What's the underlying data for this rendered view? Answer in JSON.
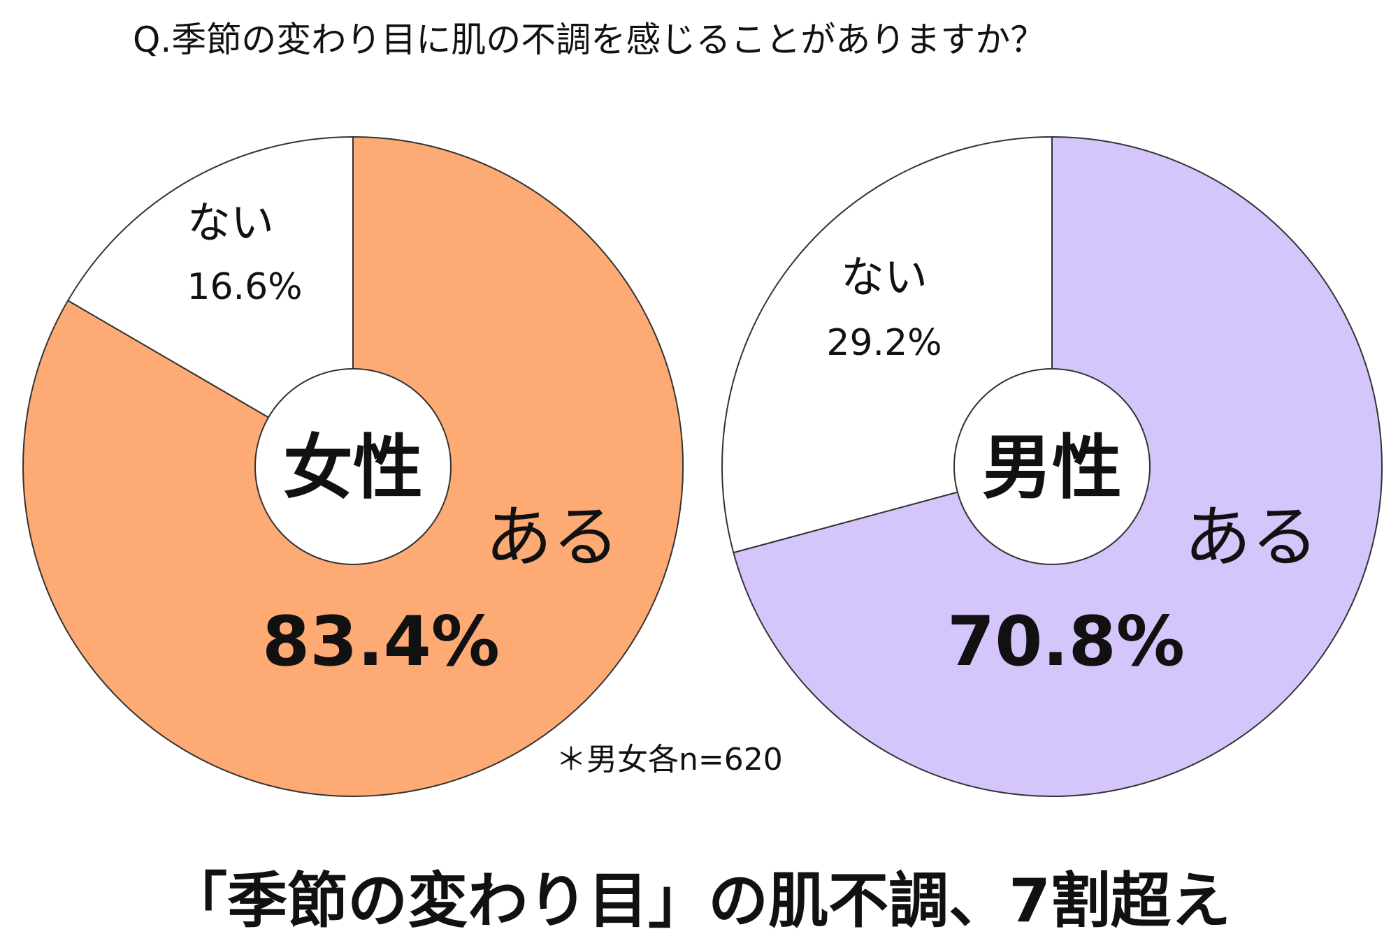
{
  "question": "Q.季節の変わり目に肌の不調を感じることがありますか？",
  "note": "＊男女各n=620",
  "headline": "「季節の変わり目」の肌不調、7割超え",
  "chart_data": [
    {
      "type": "pie",
      "center_label": "女性",
      "labels": [
        "ある",
        "ない"
      ],
      "values": [
        83.4,
        16.6
      ],
      "value_labels": [
        "83.4%",
        "16.6%"
      ],
      "colors": [
        "#FDAA74",
        "#FFFFFF"
      ]
    },
    {
      "type": "pie",
      "center_label": "男性",
      "labels": [
        "ある",
        "ない"
      ],
      "values": [
        70.8,
        29.2
      ],
      "value_labels": [
        "70.8%",
        "29.2%"
      ],
      "colors": [
        "#D4C5FA",
        "#FFFFFF"
      ]
    }
  ]
}
